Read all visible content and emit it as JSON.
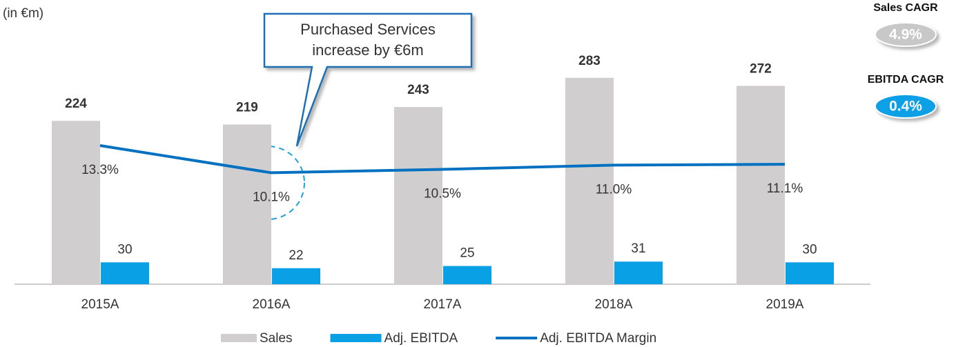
{
  "chart_data": {
    "type": "bar",
    "unit_note": "(in €m)",
    "categories": [
      "2015A",
      "2016A",
      "2017A",
      "2018A",
      "2019A"
    ],
    "series": [
      {
        "name": "Sales",
        "type": "bar",
        "color": "#d0cece",
        "values": [
          224,
          219,
          243,
          283,
          272
        ]
      },
      {
        "name": "Adj. EBITDA",
        "type": "bar",
        "color": "#0aa0e6",
        "values": [
          30,
          22,
          25,
          31,
          30
        ]
      },
      {
        "name": "Adj. EBITDA Margin",
        "type": "line",
        "axis": "y2",
        "color": "#0070c0",
        "values": [
          13.3,
          10.1,
          10.5,
          11.0,
          11.1
        ],
        "value_labels": [
          "13.3%",
          "10.1%",
          "10.5%",
          "11.0%",
          "11.1%"
        ]
      }
    ],
    "ylim": [
      0,
      350
    ],
    "y2lim": [
      -3,
      27
    ],
    "callout": [
      "Purchased Services",
      "increase by €6m"
    ],
    "badges": [
      {
        "label": "Sales CAGR",
        "value": "4.9%",
        "color": "#c8c8c8"
      },
      {
        "label": "EBITDA CAGR",
        "value": "0.4%",
        "color": "#0aa0e6"
      }
    ],
    "legend": "bottom"
  }
}
